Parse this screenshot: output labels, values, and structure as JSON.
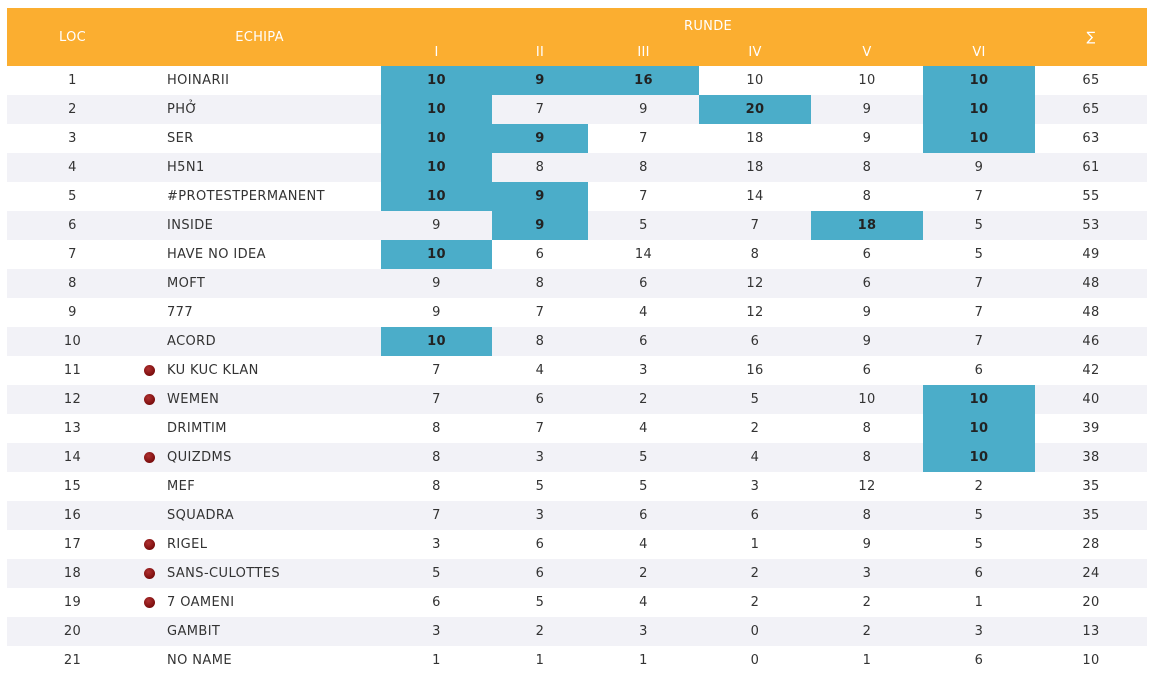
{
  "header": {
    "loc": "LOC",
    "echipa": "ECHIPA",
    "runde": "RUNDE",
    "rounds": [
      "I",
      "II",
      "III",
      "IV",
      "V",
      "VI"
    ],
    "sum": "∑"
  },
  "colors": {
    "header_bg": "#FBAE30",
    "highlight": "#4BADC9",
    "row_alt": "#f2f2f7",
    "marker_dot": "#7a0d0d"
  },
  "rows": [
    {
      "loc": "1",
      "team": "HOINARII",
      "dot": false,
      "scores": [
        "10",
        "9",
        "16",
        "10",
        "10",
        "10"
      ],
      "hl": [
        true,
        true,
        true,
        false,
        false,
        true
      ],
      "sum": "65"
    },
    {
      "loc": "2",
      "team": "PHỞ",
      "dot": false,
      "scores": [
        "10",
        "7",
        "9",
        "20",
        "9",
        "10"
      ],
      "hl": [
        true,
        false,
        false,
        true,
        false,
        true
      ],
      "sum": "65"
    },
    {
      "loc": "3",
      "team": "SER",
      "dot": false,
      "scores": [
        "10",
        "9",
        "7",
        "18",
        "9",
        "10"
      ],
      "hl": [
        true,
        true,
        false,
        false,
        false,
        true
      ],
      "sum": "63"
    },
    {
      "loc": "4",
      "team": "H5N1",
      "dot": false,
      "scores": [
        "10",
        "8",
        "8",
        "18",
        "8",
        "9"
      ],
      "hl": [
        true,
        false,
        false,
        false,
        false,
        false
      ],
      "sum": "61"
    },
    {
      "loc": "5",
      "team": "#PROTESTPERMANENT",
      "dot": false,
      "scores": [
        "10",
        "9",
        "7",
        "14",
        "8",
        "7"
      ],
      "hl": [
        true,
        true,
        false,
        false,
        false,
        false
      ],
      "sum": "55"
    },
    {
      "loc": "6",
      "team": "INSIDE",
      "dot": false,
      "scores": [
        "9",
        "9",
        "5",
        "7",
        "18",
        "5"
      ],
      "hl": [
        false,
        true,
        false,
        false,
        true,
        false
      ],
      "sum": "53"
    },
    {
      "loc": "7",
      "team": "HAVE NO IDEA",
      "dot": false,
      "scores": [
        "10",
        "6",
        "14",
        "8",
        "6",
        "5"
      ],
      "hl": [
        true,
        false,
        false,
        false,
        false,
        false
      ],
      "sum": "49"
    },
    {
      "loc": "8",
      "team": "MOFT",
      "dot": false,
      "scores": [
        "9",
        "8",
        "6",
        "12",
        "6",
        "7"
      ],
      "hl": [
        false,
        false,
        false,
        false,
        false,
        false
      ],
      "sum": "48"
    },
    {
      "loc": "9",
      "team": "777",
      "dot": false,
      "scores": [
        "9",
        "7",
        "4",
        "12",
        "9",
        "7"
      ],
      "hl": [
        false,
        false,
        false,
        false,
        false,
        false
      ],
      "sum": "48"
    },
    {
      "loc": "10",
      "team": "ACORD",
      "dot": false,
      "scores": [
        "10",
        "8",
        "6",
        "6",
        "9",
        "7"
      ],
      "hl": [
        true,
        false,
        false,
        false,
        false,
        false
      ],
      "sum": "46"
    },
    {
      "loc": "11",
      "team": "KU KUC KLAN",
      "dot": true,
      "scores": [
        "7",
        "4",
        "3",
        "16",
        "6",
        "6"
      ],
      "hl": [
        false,
        false,
        false,
        false,
        false,
        false
      ],
      "sum": "42"
    },
    {
      "loc": "12",
      "team": "WEMEN",
      "dot": true,
      "scores": [
        "7",
        "6",
        "2",
        "5",
        "10",
        "10"
      ],
      "hl": [
        false,
        false,
        false,
        false,
        false,
        true
      ],
      "sum": "40"
    },
    {
      "loc": "13",
      "team": "DRIMTIM",
      "dot": false,
      "scores": [
        "8",
        "7",
        "4",
        "2",
        "8",
        "10"
      ],
      "hl": [
        false,
        false,
        false,
        false,
        false,
        true
      ],
      "sum": "39"
    },
    {
      "loc": "14",
      "team": "QUIZDMS",
      "dot": true,
      "scores": [
        "8",
        "3",
        "5",
        "4",
        "8",
        "10"
      ],
      "hl": [
        false,
        false,
        false,
        false,
        false,
        true
      ],
      "sum": "38"
    },
    {
      "loc": "15",
      "team": "MEF",
      "dot": false,
      "scores": [
        "8",
        "5",
        "5",
        "3",
        "12",
        "2"
      ],
      "hl": [
        false,
        false,
        false,
        false,
        false,
        false
      ],
      "sum": "35"
    },
    {
      "loc": "16",
      "team": "SQUADRA",
      "dot": false,
      "scores": [
        "7",
        "3",
        "6",
        "6",
        "8",
        "5"
      ],
      "hl": [
        false,
        false,
        false,
        false,
        false,
        false
      ],
      "sum": "35"
    },
    {
      "loc": "17",
      "team": "RIGEL",
      "dot": true,
      "scores": [
        "3",
        "6",
        "4",
        "1",
        "9",
        "5"
      ],
      "hl": [
        false,
        false,
        false,
        false,
        false,
        false
      ],
      "sum": "28"
    },
    {
      "loc": "18",
      "team": "SANS-CULOTTES",
      "dot": true,
      "scores": [
        "5",
        "6",
        "2",
        "2",
        "3",
        "6"
      ],
      "hl": [
        false,
        false,
        false,
        false,
        false,
        false
      ],
      "sum": "24"
    },
    {
      "loc": "19",
      "team": "7 OAMENI",
      "dot": true,
      "scores": [
        "6",
        "5",
        "4",
        "2",
        "2",
        "1"
      ],
      "hl": [
        false,
        false,
        false,
        false,
        false,
        false
      ],
      "sum": "20"
    },
    {
      "loc": "20",
      "team": "GAMBIT",
      "dot": false,
      "scores": [
        "3",
        "2",
        "3",
        "0",
        "2",
        "3"
      ],
      "hl": [
        false,
        false,
        false,
        false,
        false,
        false
      ],
      "sum": "13"
    },
    {
      "loc": "21",
      "team": "NO NAME",
      "dot": false,
      "scores": [
        "1",
        "1",
        "1",
        "0",
        "1",
        "6"
      ],
      "hl": [
        false,
        false,
        false,
        false,
        false,
        false
      ],
      "sum": "10"
    }
  ]
}
